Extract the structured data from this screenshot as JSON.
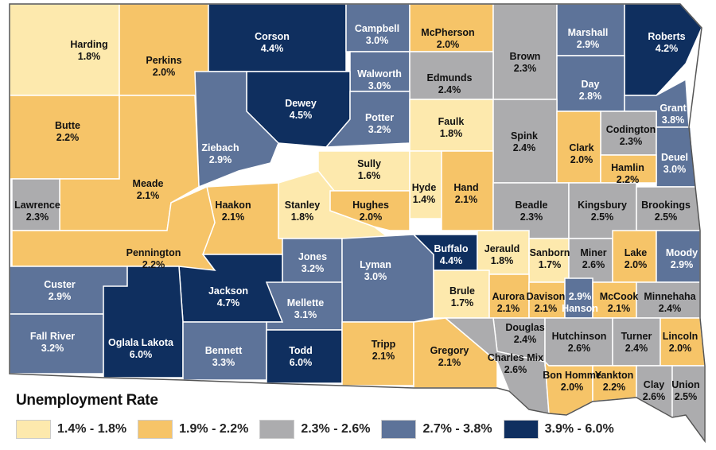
{
  "legend": {
    "title": "Unemployment Rate",
    "bins": [
      {
        "label": "1.4% - 1.8%",
        "min": 1.4,
        "max": 1.8,
        "color": "#fde9ad"
      },
      {
        "label": "1.9% - 2.2%",
        "min": 1.9,
        "max": 2.2,
        "color": "#f6c468"
      },
      {
        "label": "2.3% - 2.6%",
        "min": 2.3,
        "max": 2.6,
        "color": "#acacae"
      },
      {
        "label": "2.7% - 3.8%",
        "min": 2.7,
        "max": 3.8,
        "color": "#5d7399"
      },
      {
        "label": "3.9% - 6.0%",
        "min": 3.9,
        "max": 6.0,
        "color": "#0f2f5f"
      }
    ]
  },
  "counties": [
    {
      "name": "Harding",
      "rate": "1.8%"
    },
    {
      "name": "Perkins",
      "rate": "2.0%"
    },
    {
      "name": "Corson",
      "rate": "4.4%"
    },
    {
      "name": "Campbell",
      "rate": "3.0%"
    },
    {
      "name": "McPherson",
      "rate": "2.0%"
    },
    {
      "name": "Brown",
      "rate": "2.3%"
    },
    {
      "name": "Marshall",
      "rate": "2.9%"
    },
    {
      "name": "Roberts",
      "rate": "4.2%"
    },
    {
      "name": "Butte",
      "rate": "2.2%"
    },
    {
      "name": "Walworth",
      "rate": "3.0%"
    },
    {
      "name": "Edmunds",
      "rate": "2.4%"
    },
    {
      "name": "Day",
      "rate": "2.8%"
    },
    {
      "name": "Dewey",
      "rate": "4.5%"
    },
    {
      "name": "Potter",
      "rate": "3.2%"
    },
    {
      "name": "Faulk",
      "rate": "1.8%"
    },
    {
      "name": "Grant",
      "rate": "3.8%"
    },
    {
      "name": "Ziebach",
      "rate": "2.9%"
    },
    {
      "name": "Spink",
      "rate": "2.4%"
    },
    {
      "name": "Codington",
      "rate": "2.3%"
    },
    {
      "name": "Clark",
      "rate": "2.0%"
    },
    {
      "name": "Deuel",
      "rate": "3.0%"
    },
    {
      "name": "Meade",
      "rate": "2.1%"
    },
    {
      "name": "Sully",
      "rate": "1.6%"
    },
    {
      "name": "Hamlin",
      "rate": "2.2%"
    },
    {
      "name": "Lawrence",
      "rate": "2.3%"
    },
    {
      "name": "Hyde",
      "rate": "1.4%"
    },
    {
      "name": "Hand",
      "rate": "2.1%"
    },
    {
      "name": "Stanley",
      "rate": "1.8%"
    },
    {
      "name": "Hughes",
      "rate": "2.0%"
    },
    {
      "name": "Haakon",
      "rate": "2.1%"
    },
    {
      "name": "Beadle",
      "rate": "2.3%"
    },
    {
      "name": "Kingsbury",
      "rate": "2.5%"
    },
    {
      "name": "Brookings",
      "rate": "2.5%"
    },
    {
      "name": "Pennington",
      "rate": "2.2%"
    },
    {
      "name": "Jones",
      "rate": "3.2%"
    },
    {
      "name": "Lyman",
      "rate": "3.0%"
    },
    {
      "name": "Buffalo",
      "rate": "4.4%"
    },
    {
      "name": "Jerauld",
      "rate": "1.8%"
    },
    {
      "name": "Sanborn",
      "rate": "1.7%"
    },
    {
      "name": "Miner",
      "rate": "2.6%"
    },
    {
      "name": "Lake",
      "rate": "2.0%"
    },
    {
      "name": "Moody",
      "rate": "2.9%"
    },
    {
      "name": "Custer",
      "rate": "2.9%"
    },
    {
      "name": "Jackson",
      "rate": "4.7%"
    },
    {
      "name": "Mellette",
      "rate": "3.1%"
    },
    {
      "name": "Brule",
      "rate": "1.7%"
    },
    {
      "name": "Aurora",
      "rate": "2.1%"
    },
    {
      "name": "Davison",
      "rate": "2.1%"
    },
    {
      "name": "Hanson",
      "rate": "2.9%"
    },
    {
      "name": "McCook",
      "rate": "2.1%"
    },
    {
      "name": "Minnehaha",
      "rate": "2.4%"
    },
    {
      "name": "Fall River",
      "rate": "3.2%"
    },
    {
      "name": "Oglala Lakota",
      "rate": "6.0%"
    },
    {
      "name": "Bennett",
      "rate": "3.3%"
    },
    {
      "name": "Todd",
      "rate": "6.0%"
    },
    {
      "name": "Tripp",
      "rate": "2.1%"
    },
    {
      "name": "Gregory",
      "rate": "2.1%"
    },
    {
      "name": "Douglas",
      "rate": "2.4%"
    },
    {
      "name": "Charles Mix",
      "rate": "2.6%"
    },
    {
      "name": "Hutchinson",
      "rate": "2.6%"
    },
    {
      "name": "Turner",
      "rate": "2.4%"
    },
    {
      "name": "Lincoln",
      "rate": "2.0%"
    },
    {
      "name": "Bon Homme",
      "rate": "2.0%"
    },
    {
      "name": "Yankton",
      "rate": "2.2%"
    },
    {
      "name": "Clay",
      "rate": "2.6%"
    },
    {
      "name": "Union",
      "rate": "2.5%"
    }
  ]
}
